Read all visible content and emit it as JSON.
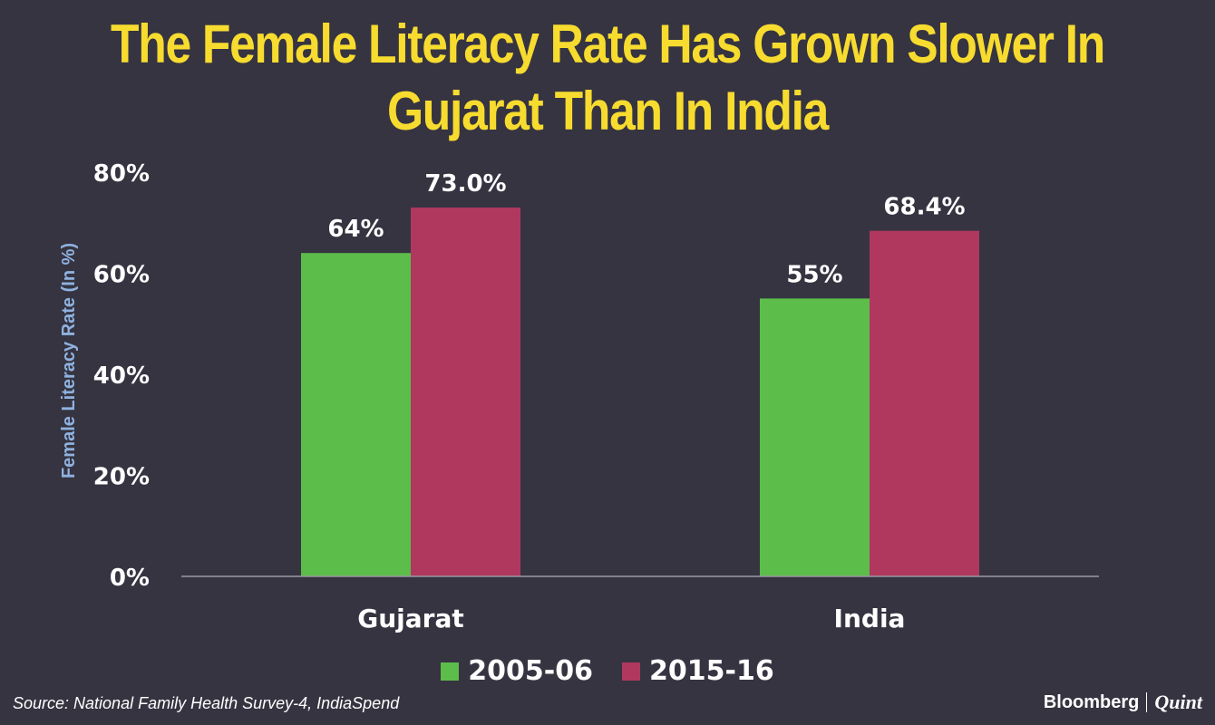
{
  "chart_data": {
    "type": "bar",
    "title": "The Female Literacy Rate Has Grown Slower In Gujarat Than In India",
    "categories": [
      "Gujarat",
      "India"
    ],
    "series": [
      {
        "name": "2005-06",
        "color": "#5cbd4a",
        "values": [
          64,
          55
        ],
        "labels": [
          "64%",
          "55%"
        ]
      },
      {
        "name": "2015-16",
        "color": "#b0385e",
        "values": [
          73.0,
          68.4
        ],
        "labels": [
          "73.0%",
          "68.4%"
        ]
      }
    ],
    "ylabel": "Female Literacy Rate (In %)",
    "xlabel": "",
    "ylim": [
      0,
      80
    ],
    "yticks": [
      "0%",
      "20%",
      "40%",
      "60%",
      "80%"
    ],
    "ytick_values": [
      0,
      20,
      40,
      60,
      80
    ],
    "legend_position": "bottom",
    "grid": false
  },
  "source": "Source: National Family Health Survey-4, IndiaSpend",
  "brand": {
    "name": "Bloomberg",
    "partner": "Quint"
  }
}
